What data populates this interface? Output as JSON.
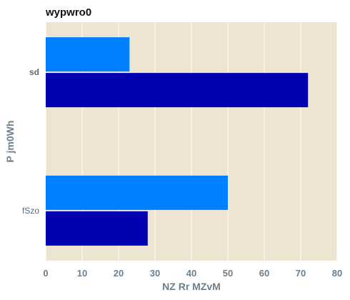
{
  "chart_data": {
    "type": "bar",
    "orientation": "horizontal",
    "title": "wypwro0",
    "xlabel": "NZ Rr MZvM",
    "ylabel": "P jm0Wh",
    "categories": [
      "sd",
      "fSzo"
    ],
    "series": [
      {
        "values": [
          23,
          50
        ],
        "color": "#0080ff"
      },
      {
        "values": [
          72,
          28
        ],
        "color": "#0000b0"
      }
    ],
    "xlim": [
      0,
      80
    ],
    "xticks": [
      "0",
      "10",
      "20",
      "30",
      "40",
      "50",
      "60",
      "70",
      "80"
    ],
    "grid": true,
    "background": "#ede5d2"
  }
}
